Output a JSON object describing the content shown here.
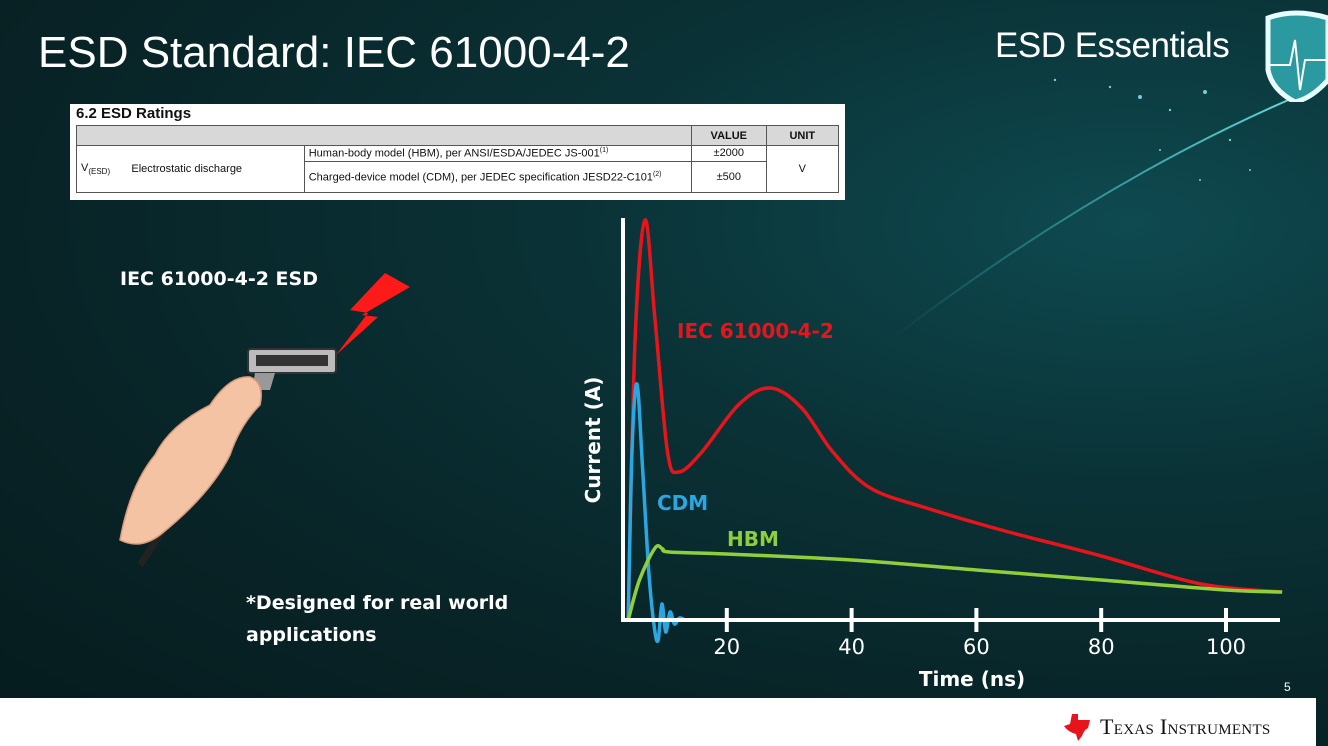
{
  "slide": {
    "title": "ESD Standard: IEC 61000-4-2",
    "brand": "ESD Essentials",
    "page_number": "5",
    "footer_logo": "Texas Instruments",
    "left_label": "IEC 61000-4-2 ESD",
    "note_line1": "*Designed for real world",
    "note_line2": "applications"
  },
  "ratings_table": {
    "caption": "6.2   ESD Ratings",
    "headers": [
      "",
      "VALUE",
      "UNIT"
    ],
    "symbol": "V",
    "symbol_sub": "(ESD)",
    "parameter": "Electrostatic discharge",
    "rows": [
      {
        "condition": "Human-body model (HBM), per ANSI/ESDA/JEDEC JS-001",
        "note": "(1)",
        "value": "±2000"
      },
      {
        "condition": "Charged-device model (CDM), per JEDEC specification JESD22-C101",
        "note": "(2)",
        "value": "±500"
      }
    ],
    "unit": "V"
  },
  "chart_data": {
    "type": "line",
    "xlabel": "Time (ns)",
    "ylabel": "Current (A)",
    "xticks": [
      20,
      40,
      60,
      80,
      100
    ],
    "xlim": [
      3.4,
      109
    ],
    "grid": false,
    "series": [
      {
        "name": "IEC 61000-4-2",
        "color": "#e8141c",
        "x": [
          4.2,
          5.3,
          6.9,
          8.5,
          10.5,
          12.3,
          16,
          22,
          27,
          32,
          37,
          43,
          52,
          64,
          80,
          96,
          109
        ],
        "y": [
          0,
          0.7,
          1.0,
          0.75,
          0.42,
          0.37,
          0.42,
          0.54,
          0.58,
          0.53,
          0.42,
          0.33,
          0.28,
          0.225,
          0.16,
          0.09,
          0.07
        ]
      },
      {
        "name": "CDM",
        "color": "#2aa7e0",
        "x": [
          4.2,
          4.8,
          5.6,
          6.5,
          7.5,
          8.4,
          9.0,
          9.6,
          10.2,
          10.9,
          11.6,
          12.4,
          13.3
        ],
        "y": [
          0,
          0.42,
          0.59,
          0.38,
          0.12,
          -0.02,
          -0.05,
          0.04,
          -0.03,
          0.02,
          -0.01,
          0.005,
          0
        ]
      },
      {
        "name": "HBM",
        "color": "#8fcf3c",
        "x": [
          4.2,
          6,
          8.5,
          9.7,
          10.8,
          20,
          40,
          60,
          80,
          100,
          109
        ],
        "y": [
          0,
          0.1,
          0.18,
          0.178,
          0.17,
          0.165,
          0.15,
          0.125,
          0.1,
          0.075,
          0.07
        ]
      }
    ]
  },
  "colors": {
    "accent_red": "#e8141c",
    "cdm_blue": "#2aa7e0",
    "hbm_green": "#8fcf3c"
  },
  "icons": {
    "shield": "shield-pulse-icon",
    "hand": "hand-holding-hdmi-cable",
    "bolt": "lightning-bolt-icon",
    "logo": "ti-logo"
  }
}
